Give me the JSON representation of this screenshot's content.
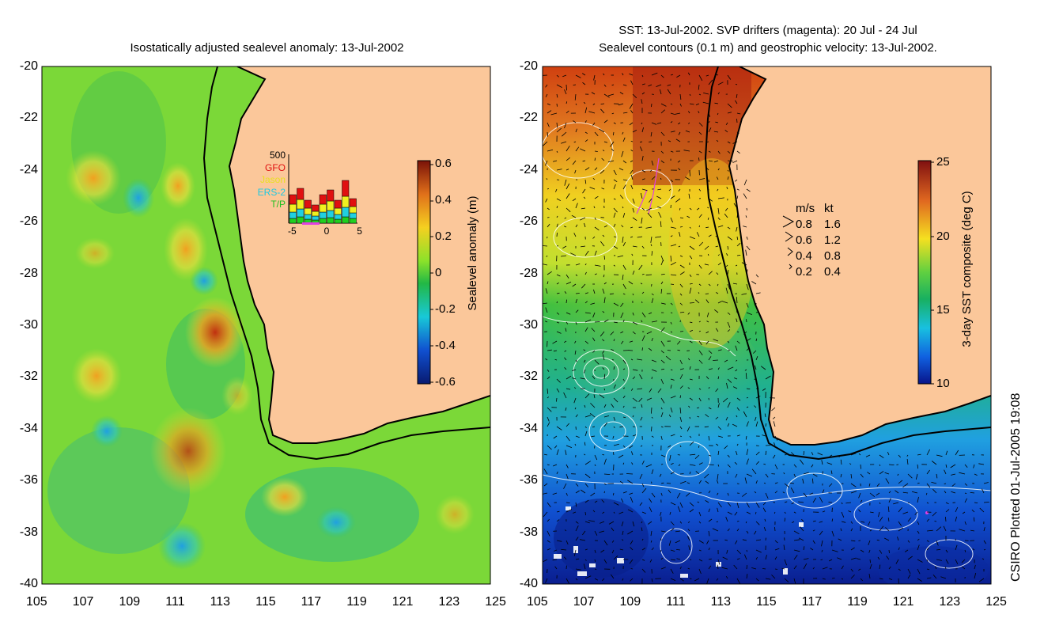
{
  "left_panel": {
    "title": "Isostatically adjusted sealevel anomaly: 13-Jul-2002",
    "y_ticks": [
      "-20",
      "-22",
      "-24",
      "-26",
      "-28",
      "-30",
      "-32",
      "-34",
      "-36",
      "-38",
      "-40"
    ],
    "x_ticks": [
      "105",
      "107",
      "109",
      "111",
      "113",
      "115",
      "117",
      "119",
      "121",
      "123",
      "125"
    ],
    "colorbar": {
      "label": "Sealevel anomaly (m)",
      "ticks": [
        "0.6",
        "0.4",
        "0.2",
        "0",
        "-0.2",
        "-0.4",
        "-0.6"
      ]
    },
    "inset": {
      "max_label": "500",
      "legend": [
        {
          "name": "GFO",
          "color": "#e01010"
        },
        {
          "name": "Jason",
          "color": "#f0f020"
        },
        {
          "name": "ERS-2",
          "color": "#20d0e0"
        },
        {
          "name": "T/P",
          "color": "#20d020"
        }
      ],
      "x_ticks": [
        "-5",
        "0",
        "5"
      ]
    }
  },
  "right_panel": {
    "title_line1": "SST: 13-Jul-2002. SVP drifters (magenta): 20 Jul - 24 Jul",
    "title_line2": "Sealevel contours (0.1 m) and geostrophic velocity: 13-Jul-2002.",
    "y_ticks": [
      "-20",
      "-22",
      "-24",
      "-26",
      "-28",
      "-30",
      "-32",
      "-34",
      "-36",
      "-38",
      "-40"
    ],
    "x_ticks": [
      "105",
      "107",
      "109",
      "111",
      "113",
      "115",
      "117",
      "119",
      "121",
      "123",
      "125"
    ],
    "colorbar": {
      "label": "3-day SST composite (deg C)",
      "ticks": [
        "25",
        "20",
        "15",
        "10"
      ]
    },
    "velocity_legend": {
      "header_ms": "m/s",
      "header_kt": "kt",
      "rows": [
        {
          "ms": "0.8",
          "kt": "1.6"
        },
        {
          "ms": "0.6",
          "kt": "1.2"
        },
        {
          "ms": "0.4",
          "kt": "0.8"
        },
        {
          "ms": "0.2",
          "kt": "0.4"
        }
      ]
    }
  },
  "credit": "CSIRO Plotted 01-Jul-2005 19:08",
  "colors": {
    "land": "#fbc79a",
    "coast": "#000000",
    "contour": "#ffffff",
    "drifter": "#e040e0"
  }
}
